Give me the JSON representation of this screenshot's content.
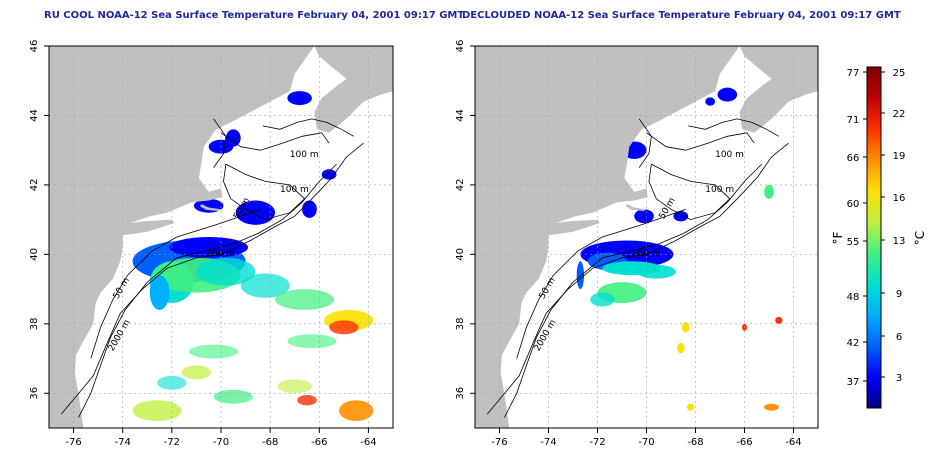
{
  "panels": [
    {
      "title": "RU COOL NOAA-12 Sea Surface Temperature February 04, 2001 09:17 GMT",
      "contour_labels": [
        "100 m",
        "100 m",
        "50 m",
        "200 m",
        "50 m",
        "2000 m"
      ]
    },
    {
      "title": "DECLOUDED NOAA-12 Sea Surface Temperature February 04, 2001 09:17 GMT",
      "contour_labels": [
        "100 m",
        "100 m",
        "50 m",
        "200 m",
        "50 m",
        "2000 m"
      ]
    }
  ],
  "axes": {
    "x_ticks": [
      "-76",
      "-74",
      "-72",
      "-70",
      "-68",
      "-66",
      "-64"
    ],
    "y_ticks": [
      "36",
      "38",
      "40",
      "42",
      "44",
      "46"
    ],
    "lon_range": [
      -77,
      -63
    ],
    "lat_range": [
      35,
      46
    ]
  },
  "colorbar": {
    "fahrenheit_ticks": [
      "77",
      "71",
      "66",
      "60",
      "55",
      "48",
      "42",
      "37"
    ],
    "celsius_ticks": [
      "25",
      "22",
      "19",
      "16",
      "13",
      "9",
      "6",
      "3"
    ],
    "fahrenheit_label": "°F",
    "celsius_label": "°C",
    "colors": [
      "#000080",
      "#0000ff",
      "#0060ff",
      "#00b0ff",
      "#00e0d0",
      "#40f080",
      "#c0f040",
      "#ffe000",
      "#ff9000",
      "#ff3000",
      "#c00000",
      "#800000"
    ]
  },
  "colors": {
    "land": "#c0c0c0",
    "ocean": "#ffffff",
    "title": "#1f2a9a",
    "grid": "#a0a0a0"
  }
}
